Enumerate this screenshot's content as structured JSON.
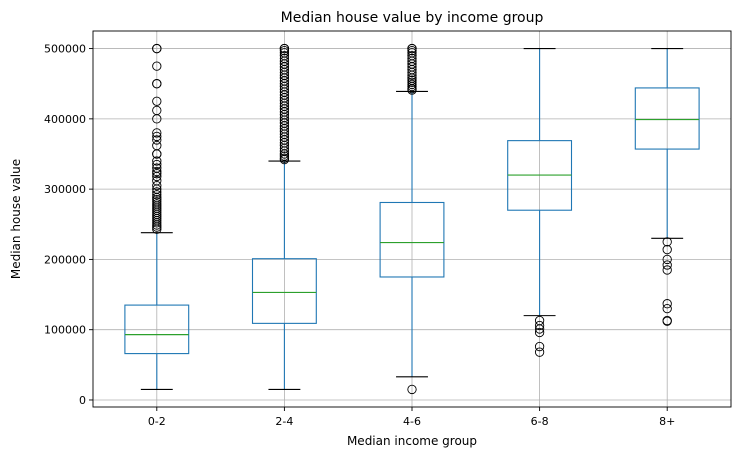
{
  "chart_data": {
    "type": "box",
    "title": "Median house value by income group",
    "xlabel": "Median income group",
    "ylabel": "Median house value",
    "categories": [
      "0-2",
      "2-4",
      "4-6",
      "6-8",
      "8+"
    ],
    "ylim": [
      -10000,
      525000
    ],
    "yticks": [
      0,
      100000,
      200000,
      300000,
      400000,
      500000
    ],
    "grid": true,
    "colors": {
      "box": "#1f77b4",
      "median": "#2ca02c",
      "cap": "#000000",
      "flier": "#000000",
      "grid": "#b0b0b0"
    },
    "boxes": [
      {
        "category": "0-2",
        "whislo": 15000,
        "q1": 66000,
        "med": 93000,
        "q3": 135000,
        "whishi": 238000,
        "fliers": [
          500001,
          500000,
          475000,
          450000,
          450000,
          425000,
          412000,
          400000,
          380000,
          375000,
          370000,
          362000,
          350000,
          350000,
          340000,
          335000,
          330000,
          325000,
          322000,
          318000,
          312000,
          305000,
          300000,
          296000,
          292000,
          288000,
          285000,
          282000,
          279000,
          276000,
          273000,
          270000,
          267000,
          264000,
          261000,
          258000,
          255000,
          252000,
          249000,
          246000,
          243000
        ]
      },
      {
        "category": "2-4",
        "whislo": 15000,
        "q1": 109000,
        "med": 153000,
        "q3": 201000,
        "whishi": 340000,
        "fliers": [
          500001,
          500000,
          497000,
          494000,
          490000,
          486000,
          482000,
          478000,
          474000,
          470000,
          466000,
          462000,
          458000,
          454000,
          450000,
          446000,
          442000,
          438000,
          434000,
          430000,
          426000,
          422000,
          418000,
          414000,
          410000,
          406000,
          402000,
          398000,
          394000,
          390000,
          386000,
          382000,
          378000,
          374000,
          370000,
          366000,
          362000,
          358000,
          354000,
          350000,
          347000,
          344000,
          342000
        ]
      },
      {
        "category": "4-6",
        "whislo": 33000,
        "q1": 175000,
        "med": 224000,
        "q3": 281000,
        "whishi": 439000,
        "fliers": [
          15000,
          500001,
          500000,
          497000,
          494000,
          490000,
          486000,
          482000,
          478000,
          474000,
          470000,
          466000,
          462000,
          458000,
          455000,
          452000,
          449000,
          446000,
          443000,
          441000
        ]
      },
      {
        "category": "6-8",
        "whislo": 120000,
        "q1": 270000,
        "med": 320000,
        "q3": 369000,
        "whishi": 500000,
        "fliers": [
          113000,
          106000,
          101000,
          96000,
          76000,
          68000
        ]
      },
      {
        "category": "8+",
        "whislo": 230000,
        "q1": 357000,
        "med": 399000,
        "q3": 444000,
        "whishi": 500000,
        "fliers": [
          225000,
          214000,
          200000,
          192000,
          185000,
          137000,
          130000,
          113000,
          112000
        ]
      }
    ]
  }
}
